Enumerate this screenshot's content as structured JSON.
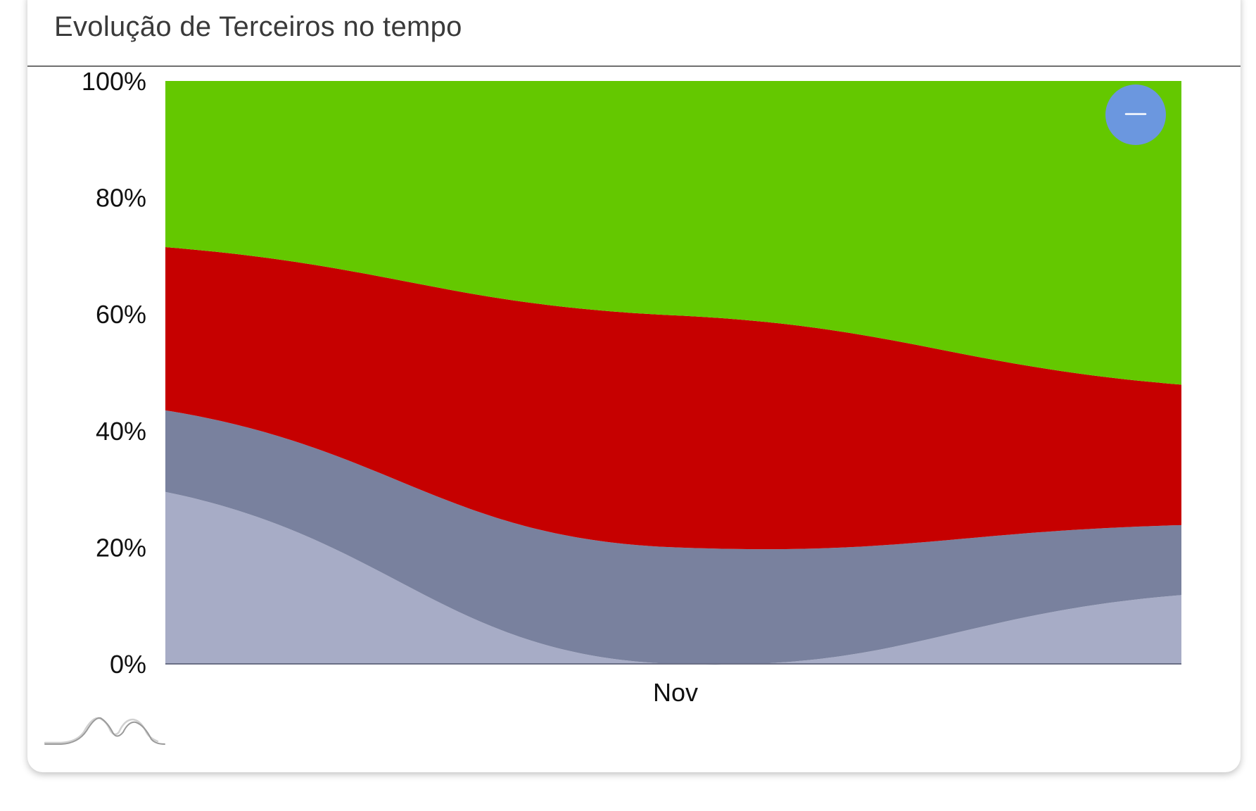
{
  "card": {
    "title": "Evolução de Terceiros no tempo"
  },
  "chart_data": {
    "type": "area",
    "stacking": "percent",
    "title": "",
    "xlabel": "",
    "ylabel": "",
    "categories": [
      "Nov"
    ],
    "x": [
      0,
      1,
      2
    ],
    "y_ticks": [
      "0%",
      "20%",
      "40%",
      "60%",
      "80%",
      "100%"
    ],
    "ylim": [
      0,
      100
    ],
    "grid": false,
    "legend": "none",
    "series": [
      {
        "values": [
          29.5,
          0,
          11.8
        ],
        "color": "#a7acc6"
      },
      {
        "values": [
          14,
          20,
          12
        ],
        "color": "#79819e"
      },
      {
        "values": [
          28,
          39.8,
          24.1
        ],
        "color": "#c60000"
      },
      {
        "values": [
          28.5,
          40.2,
          52.1
        ],
        "color": "#64c800"
      }
    ]
  },
  "controls": {
    "collapse_icon": "minus-icon",
    "collapse_color": "#6b97df",
    "footer_icon": "area-chart-icon"
  }
}
